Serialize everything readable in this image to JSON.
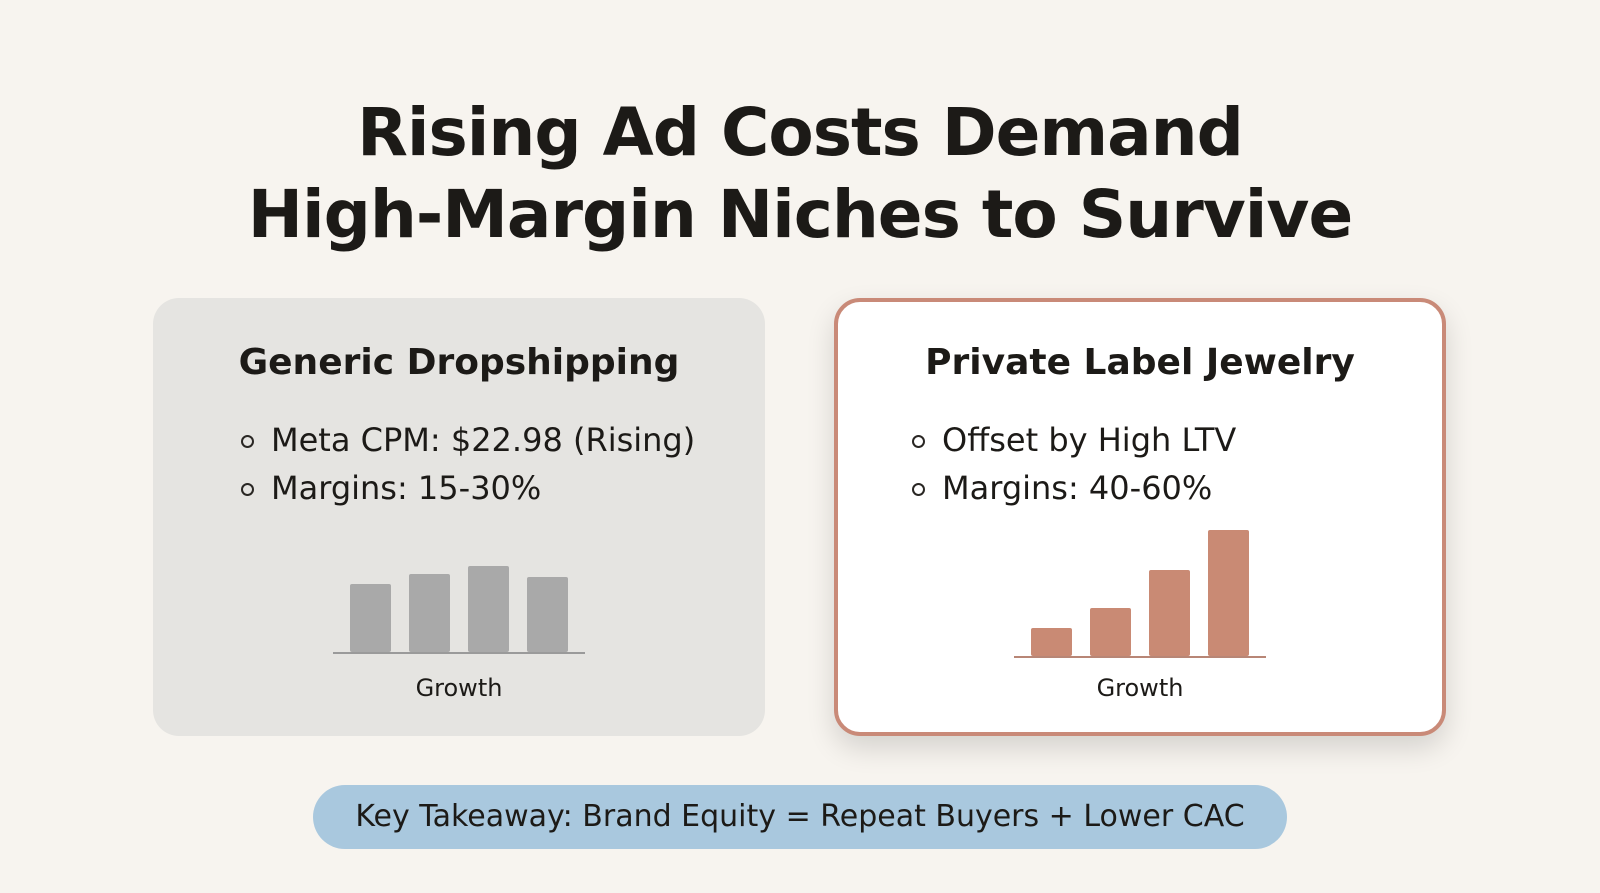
{
  "title": {
    "line1": "Rising Ad Costs Demand",
    "line2": "High-Margin Niches to Survive"
  },
  "cards": [
    {
      "title": "Generic Dropshipping",
      "bullets": [
        "Meta CPM: $22.98 (Rising)",
        "Margins: 15-30%"
      ],
      "chart_label": "Growth",
      "bar_color": "#a9a9a9"
    },
    {
      "title": "Private Label Jewelry",
      "bullets": [
        "Offset by High LTV",
        "Margins: 40-60%"
      ],
      "chart_label": "Growth",
      "bar_color": "#c98a74"
    }
  ],
  "takeaway": "Key Takeaway: Brand Equity = Repeat Buyers + Lower CAC",
  "colors": {
    "background": "#f7f4ef",
    "accent_border": "#c98a78",
    "takeaway_pill": "#a9c8de"
  },
  "chart_data": [
    {
      "type": "bar",
      "categories": [
        "",
        "",
        "",
        ""
      ],
      "values": [
        68,
        78,
        86,
        75
      ],
      "xlabel": "Growth",
      "ylim": [
        0,
        130
      ],
      "grid": false
    },
    {
      "type": "bar",
      "categories": [
        "",
        "",
        "",
        ""
      ],
      "values": [
        28,
        48,
        86,
        126
      ],
      "xlabel": "Growth",
      "ylim": [
        0,
        130
      ],
      "grid": false
    }
  ]
}
